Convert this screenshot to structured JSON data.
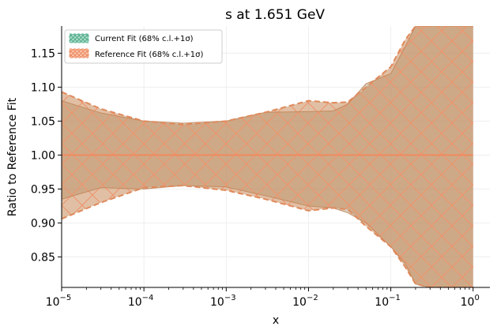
{
  "chart_data": {
    "type": "area",
    "title": "s at 1.651 GeV",
    "xlabel": "x",
    "ylabel": "Ratio to Reference Fit",
    "xscale": "log",
    "xlim": [
      1e-05,
      1.6
    ],
    "ylim": [
      0.805,
      1.19
    ],
    "x_ticks": [
      1e-05,
      0.0001,
      0.001,
      0.01,
      0.1,
      1
    ],
    "x_tick_labels": [
      {
        "base": "10",
        "exp": "−5"
      },
      {
        "base": "10",
        "exp": "−4"
      },
      {
        "base": "10",
        "exp": "−3"
      },
      {
        "base": "10",
        "exp": "−2"
      },
      {
        "base": "10",
        "exp": "−1"
      },
      {
        "base": "10",
        "exp": "0"
      }
    ],
    "y_ticks": [
      0.85,
      0.9,
      0.95,
      1.0,
      1.05,
      1.1,
      1.15
    ],
    "y_tick_labels": [
      "0.85",
      "0.90",
      "0.95",
      "1.00",
      "1.05",
      "1.10",
      "1.15"
    ],
    "grid": true,
    "legend_position": "top-left",
    "legend": [
      {
        "label": "Current Fit (68% c.l.+1σ)",
        "color": "#66c2a5",
        "hatch": true
      },
      {
        "label": "Reference Fit (68% c.l.+1σ)",
        "color": "#fc8d62",
        "hatch": true
      }
    ],
    "series": [
      {
        "name": "Current Fit (68% c.l.+1σ)",
        "color": "#66c2a5",
        "x": [
          1e-05,
          3e-05,
          0.0001,
          0.0003,
          0.001,
          0.003,
          0.01,
          0.02,
          0.03,
          0.05,
          0.1,
          0.15,
          0.2,
          0.3,
          0.5,
          1
        ],
        "upper": [
          1.08,
          1.062,
          1.05,
          1.047,
          1.05,
          1.063,
          1.064,
          1.065,
          1.075,
          1.105,
          1.12,
          1.16,
          1.19,
          1.19,
          1.19,
          1.19
        ],
        "lower": [
          0.935,
          0.952,
          0.95,
          0.955,
          0.953,
          0.94,
          0.925,
          0.922,
          0.915,
          0.9,
          0.865,
          0.84,
          0.81,
          0.805,
          0.805,
          0.805
        ]
      },
      {
        "name": "Reference Fit (68% c.l.+1σ)",
        "color": "#fc8d62",
        "x": [
          1e-05,
          3e-05,
          0.0001,
          0.0003,
          0.001,
          0.003,
          0.01,
          0.02,
          0.03,
          0.05,
          0.1,
          0.15,
          0.2,
          0.3,
          0.5,
          1
        ],
        "central": [
          1,
          1,
          1,
          1,
          1,
          1,
          1,
          1,
          1,
          1,
          1,
          1,
          1,
          1,
          1,
          1
        ],
        "upper": [
          1.093,
          1.068,
          1.05,
          1.045,
          1.05,
          1.063,
          1.08,
          1.077,
          1.078,
          1.1,
          1.13,
          1.17,
          1.19,
          1.19,
          1.19,
          1.19
        ],
        "lower": [
          0.906,
          0.93,
          0.952,
          0.955,
          0.948,
          0.935,
          0.918,
          0.922,
          0.92,
          0.895,
          0.865,
          0.835,
          0.81,
          0.805,
          0.805,
          0.805
        ]
      }
    ]
  }
}
